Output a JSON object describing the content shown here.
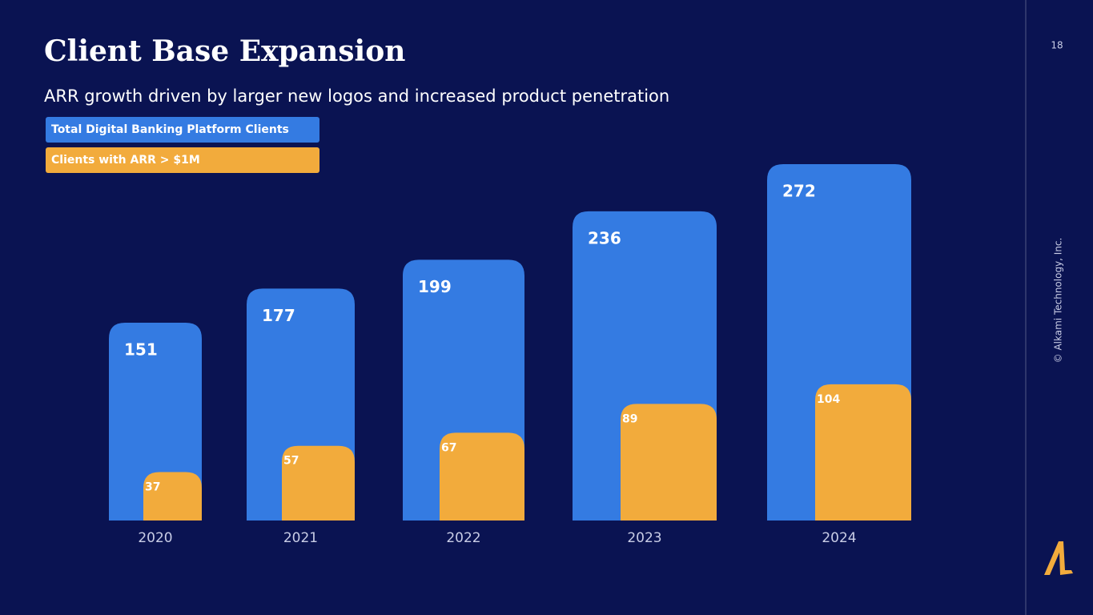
{
  "chart_data": {
    "type": "bar",
    "title": "Client Base Expansion",
    "subtitle": "ARR growth driven by larger new logos and increased product penetration",
    "categories": [
      "2020",
      "2021",
      "2022",
      "2023",
      "2024"
    ],
    "series": [
      {
        "name": "Total Digital Banking Platform Clients",
        "color": "#347be2",
        "values": [
          151,
          177,
          199,
          236,
          272
        ]
      },
      {
        "name": "Clients with ARR > $1M",
        "color": "#f2ab3c",
        "values": [
          37,
          57,
          67,
          89,
          104
        ]
      }
    ]
  },
  "page_number": "18",
  "footer": "© Alkami Technology, Inc."
}
